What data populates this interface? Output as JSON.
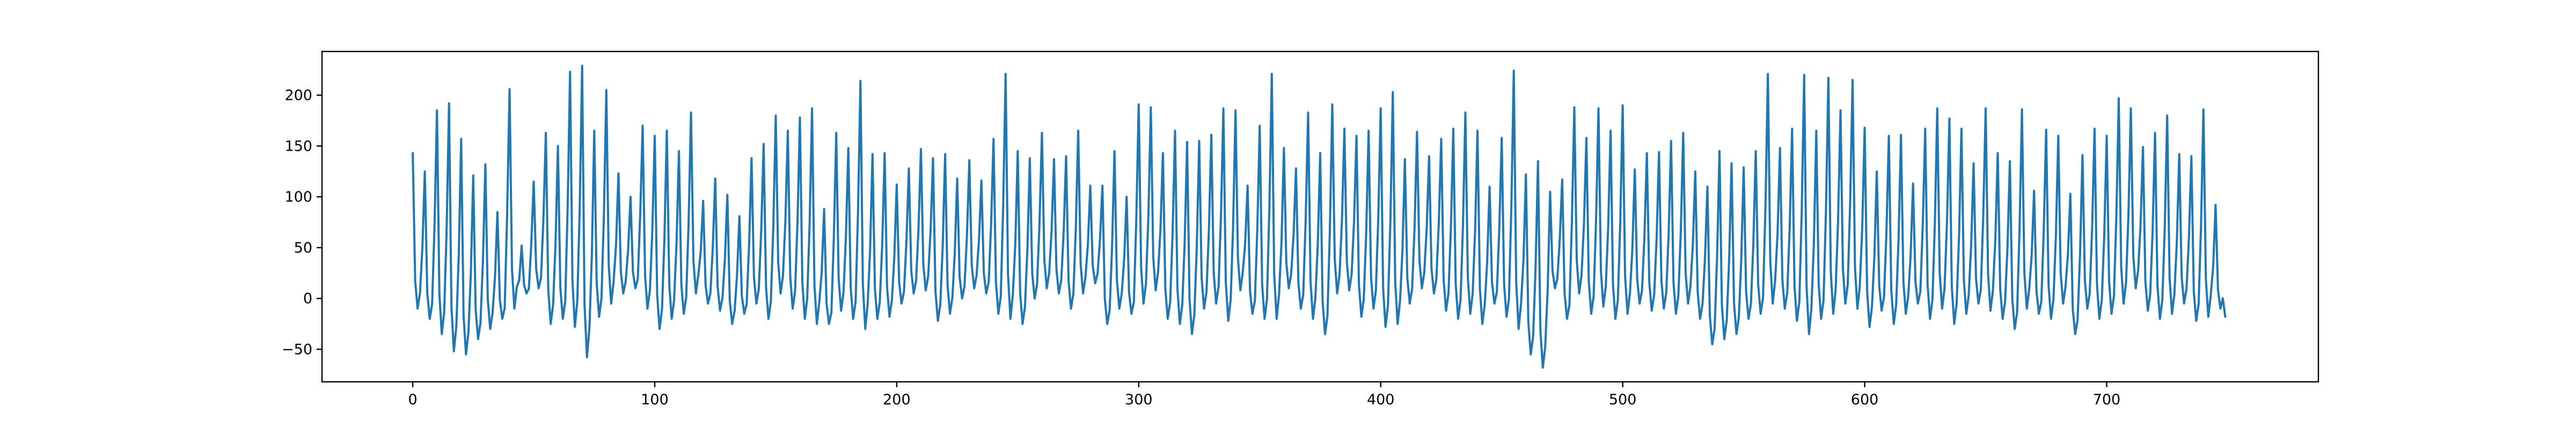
{
  "chart_data": {
    "type": "line",
    "title": "",
    "xlabel": "",
    "ylabel": "",
    "xlim": [
      -37.5,
      787.5
    ],
    "ylim": [
      -82,
      243
    ],
    "x_ticks": [
      0,
      100,
      200,
      300,
      400,
      500,
      600,
      700
    ],
    "y_ticks": [
      -50,
      0,
      50,
      100,
      150,
      200
    ],
    "grid": false,
    "legend": "none",
    "x_start": 0,
    "x_step": 1,
    "series": [
      {
        "color": "#1f77b4",
        "peaks": [
          143,
          125,
          185,
          192,
          157,
          121,
          132,
          85,
          206,
          52,
          115,
          163,
          150,
          223,
          229,
          165,
          205,
          123,
          100,
          170,
          160,
          165,
          145,
          183,
          96,
          118,
          102,
          81,
          138,
          152,
          180,
          165,
          178,
          187,
          88,
          163,
          148,
          214,
          142,
          143,
          112,
          128,
          147,
          138,
          142,
          118,
          136,
          116,
          157,
          221,
          145,
          138,
          163,
          137,
          140,
          165,
          111,
          111,
          145,
          100,
          191,
          188,
          143,
          165,
          154,
          155,
          161,
          187,
          185,
          111,
          170,
          221,
          148,
          128,
          183,
          143,
          191,
          167,
          160,
          165,
          187,
          203,
          137,
          164,
          140,
          157,
          167,
          183,
          165,
          110,
          158,
          224,
          122,
          135,
          105,
          117,
          188,
          158,
          187,
          165,
          190,
          127,
          143,
          144,
          155,
          163,
          125,
          110,
          145,
          133,
          129,
          145,
          221,
          148,
          167,
          220,
          165,
          217,
          185,
          215,
          168,
          125,
          160,
          161,
          113,
          167,
          187,
          177,
          167,
          133,
          187,
          143,
          135,
          186,
          106,
          166,
          160,
          103,
          141,
          167,
          160,
          197,
          187,
          149,
          163,
          180,
          142,
          140,
          186,
          92,
          45
        ],
        "troughs": [
          -10,
          -20,
          -35,
          -52,
          -55,
          -40,
          -30,
          -20,
          -10,
          5,
          10,
          -25,
          -20,
          -28,
          -58,
          -18,
          -5,
          5,
          10,
          -10,
          -30,
          -20,
          -15,
          5,
          -5,
          -12,
          -25,
          -15,
          -5,
          -20,
          5,
          -10,
          -20,
          -25,
          -25,
          -12,
          -20,
          -30,
          -20,
          -18,
          -5,
          5,
          8,
          -22,
          -15,
          0,
          10,
          5,
          -15,
          -20,
          -25,
          0,
          10,
          5,
          -10,
          5,
          15,
          -25,
          -10,
          -15,
          -5,
          8,
          -20,
          -25,
          -35,
          -10,
          -5,
          -22,
          8,
          -15,
          -20,
          -20,
          10,
          -10,
          -20,
          -35,
          5,
          8,
          -18,
          -10,
          -28,
          -25,
          -5,
          10,
          5,
          -12,
          -20,
          -15,
          -25,
          -5,
          -18,
          -30,
          -55,
          -68,
          10,
          -20,
          5,
          -15,
          -8,
          -20,
          -15,
          -5,
          -12,
          -10,
          -15,
          -5,
          -20,
          -45,
          -40,
          -35,
          -20,
          -15,
          -5,
          -10,
          -22,
          -35,
          -20,
          -15,
          -5,
          -10,
          -28,
          -12,
          -25,
          -15,
          -5,
          -20,
          -10,
          -25,
          -15,
          -5,
          -12,
          -20,
          -30,
          -10,
          -15,
          -20,
          -5,
          -35,
          -10,
          -20,
          -15,
          -5,
          10,
          -12,
          -20,
          -15,
          -5,
          -22,
          -18
        ],
        "end_value": -18
      }
    ]
  }
}
